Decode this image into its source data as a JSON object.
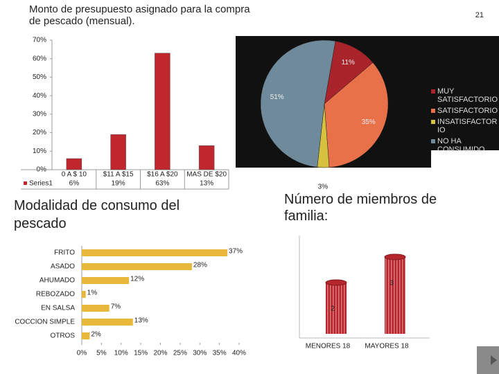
{
  "slide_number": "21",
  "chart_data": [
    {
      "type": "bar",
      "title": "Monto de presupuesto asignado  para la compra de pescado (mensual).",
      "categories": [
        "0 A $ 10",
        "$11 A $15",
        "$16 A $20",
        "MAS DE $20"
      ],
      "series": [
        {
          "name": "Series1",
          "color": "#c0272d",
          "values": [
            6,
            19,
            63,
            13
          ],
          "value_labels": [
            "6%",
            "19%",
            "63%",
            "13%"
          ]
        }
      ],
      "ylim": [
        0,
        70
      ],
      "yticks": [
        {
          "value": 0,
          "label": "0%"
        },
        {
          "value": 10,
          "label": "10%"
        },
        {
          "value": 20,
          "label": "20%"
        },
        {
          "value": 30,
          "label": "30%"
        },
        {
          "value": 40,
          "label": "40%"
        },
        {
          "value": 50,
          "label": "50%"
        },
        {
          "value": 60,
          "label": "60%"
        },
        {
          "value": 70,
          "label": "70%"
        }
      ]
    },
    {
      "type": "pie",
      "categories": [
        "MUY SATISFACTORIO",
        "SATISFACTORIO",
        "INSATISFACTORIO",
        "NO HA CONSUMIDO"
      ],
      "values": [
        11,
        35,
        3,
        51
      ],
      "value_labels": [
        "11%",
        "35%",
        "3%",
        "51%"
      ],
      "colors": [
        "#a8242a",
        "#e8714a",
        "#d6c23e",
        "#6f8b9b"
      ],
      "legend": "right"
    },
    {
      "type": "bar",
      "orientation": "horizontal",
      "title": "Modalidad de consumo del pescado",
      "categories": [
        "FRITO",
        "ASADO",
        "AHUMADO",
        "REBOZADO",
        "EN SALSA",
        "COCCION SIMPLE",
        "OTROS"
      ],
      "values": [
        37,
        28,
        12,
        1,
        7,
        13,
        2
      ],
      "value_labels": [
        "37%",
        "28%",
        "12%",
        "1%",
        "7%",
        "13%",
        "2%"
      ],
      "color": "#e8b83a",
      "xlim": [
        0,
        40
      ],
      "xticks": [
        {
          "value": 0,
          "label": "0%"
        },
        {
          "value": 5,
          "label": "5%"
        },
        {
          "value": 10,
          "label": "10%"
        },
        {
          "value": 15,
          "label": "15%"
        },
        {
          "value": 20,
          "label": "20%"
        },
        {
          "value": 25,
          "label": "25%"
        },
        {
          "value": 30,
          "label": "30%"
        },
        {
          "value": 35,
          "label": "35%"
        },
        {
          "value": 40,
          "label": "40%"
        }
      ]
    },
    {
      "type": "bar",
      "shape": "cylinder",
      "title": "Número de miembros de familia:",
      "categories": [
        "MENORES 18",
        "MAYORES 18"
      ],
      "values": [
        2,
        3
      ],
      "color": "#b5262c"
    }
  ]
}
